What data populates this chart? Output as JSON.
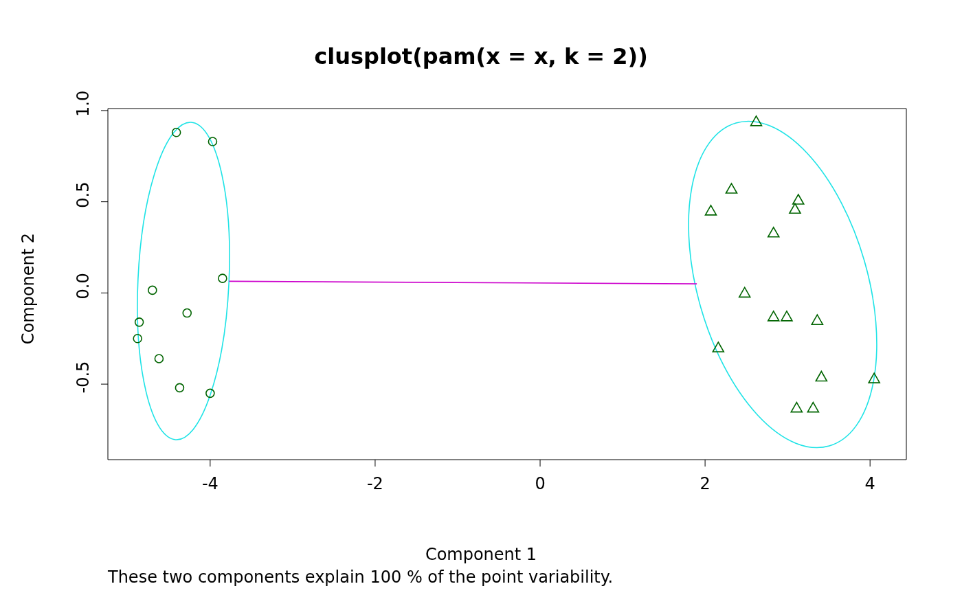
{
  "chart_data": {
    "type": "scatter",
    "title": "clusplot(pam(x = x, k = 2))",
    "xlabel": "Component 1",
    "ylabel": "Component 2",
    "annotations": [
      "These two components explain 100 % of the point variability."
    ],
    "xlim": [
      -5.24,
      4.44
    ],
    "ylim": [
      -0.914,
      1.011
    ],
    "xticks": [
      -4,
      -2,
      0,
      2,
      4
    ],
    "yticks": [
      {
        "value": -0.5,
        "label": "-0.5"
      },
      {
        "value": 0,
        "label": "0.0"
      },
      {
        "value": 0.5,
        "label": "0.5"
      },
      {
        "value": 1,
        "label": "1.0"
      }
    ],
    "grid": false,
    "legend": false,
    "series": [
      {
        "type": "line",
        "marker": "none",
        "color": "#cc00cc",
        "x": [
          -3.77,
          1.9
        ],
        "values": [
          0.064,
          0.05
        ]
      },
      {
        "type": "scatter",
        "marker": "circle",
        "color": "#006400",
        "x": [
          -4.41,
          -3.97,
          -3.85,
          -4.7,
          -4.28,
          -4.86,
          -4.88,
          -4.62,
          -4.37,
          -4.0
        ],
        "values": [
          0.88,
          0.83,
          0.08,
          0.015,
          -0.11,
          -0.16,
          -0.25,
          -0.36,
          -0.52,
          -0.55
        ]
      },
      {
        "type": "scatter",
        "marker": "triangle",
        "color": "#006400",
        "x": [
          2.62,
          2.32,
          2.07,
          3.13,
          3.09,
          2.83,
          2.48,
          2.83,
          2.99,
          3.36,
          2.16,
          3.41,
          4.05,
          3.11,
          3.31
        ],
        "values": [
          0.94,
          0.57,
          0.45,
          0.51,
          0.46,
          0.33,
          0.0,
          -0.13,
          -0.13,
          -0.15,
          -0.3,
          -0.46,
          -0.47,
          -0.63,
          -0.63
        ]
      }
    ]
  }
}
